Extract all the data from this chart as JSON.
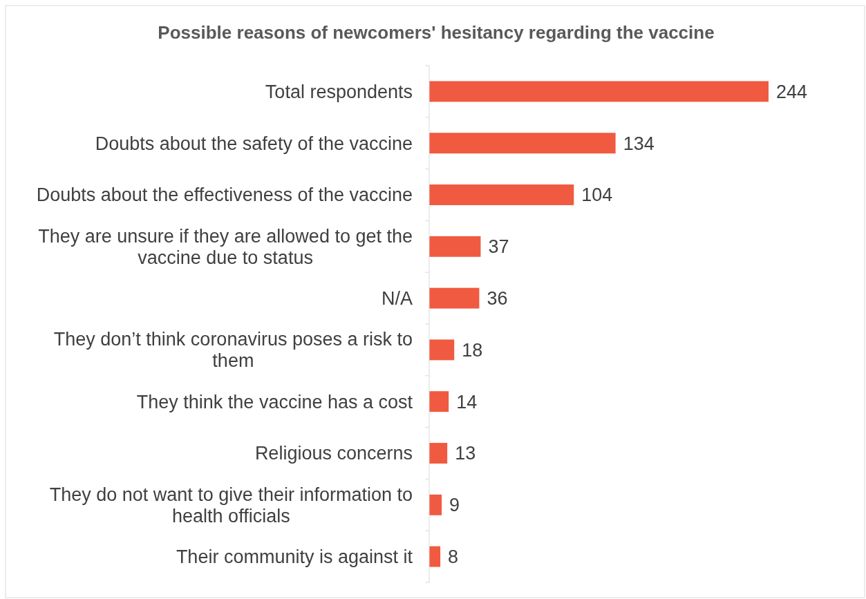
{
  "chart_data": {
    "type": "bar",
    "orientation": "horizontal",
    "title": "Possible reasons of newcomers' hesitancy regarding the vaccine",
    "categories": [
      "Total respondents",
      "Doubts about the safety of the vaccine",
      "Doubts about the effectiveness of the vaccine",
      "They are unsure if they are allowed to get the vaccine due to status",
      "N/A",
      "They don’t think coronavirus poses a risk to them",
      "They think the vaccine has a cost",
      "Religious concerns",
      "They do not want to give their information to health officials",
      "Their community is against it"
    ],
    "values": [
      244,
      134,
      104,
      37,
      36,
      18,
      14,
      13,
      9,
      8
    ],
    "color": "#f05a40",
    "data_labels": true
  }
}
